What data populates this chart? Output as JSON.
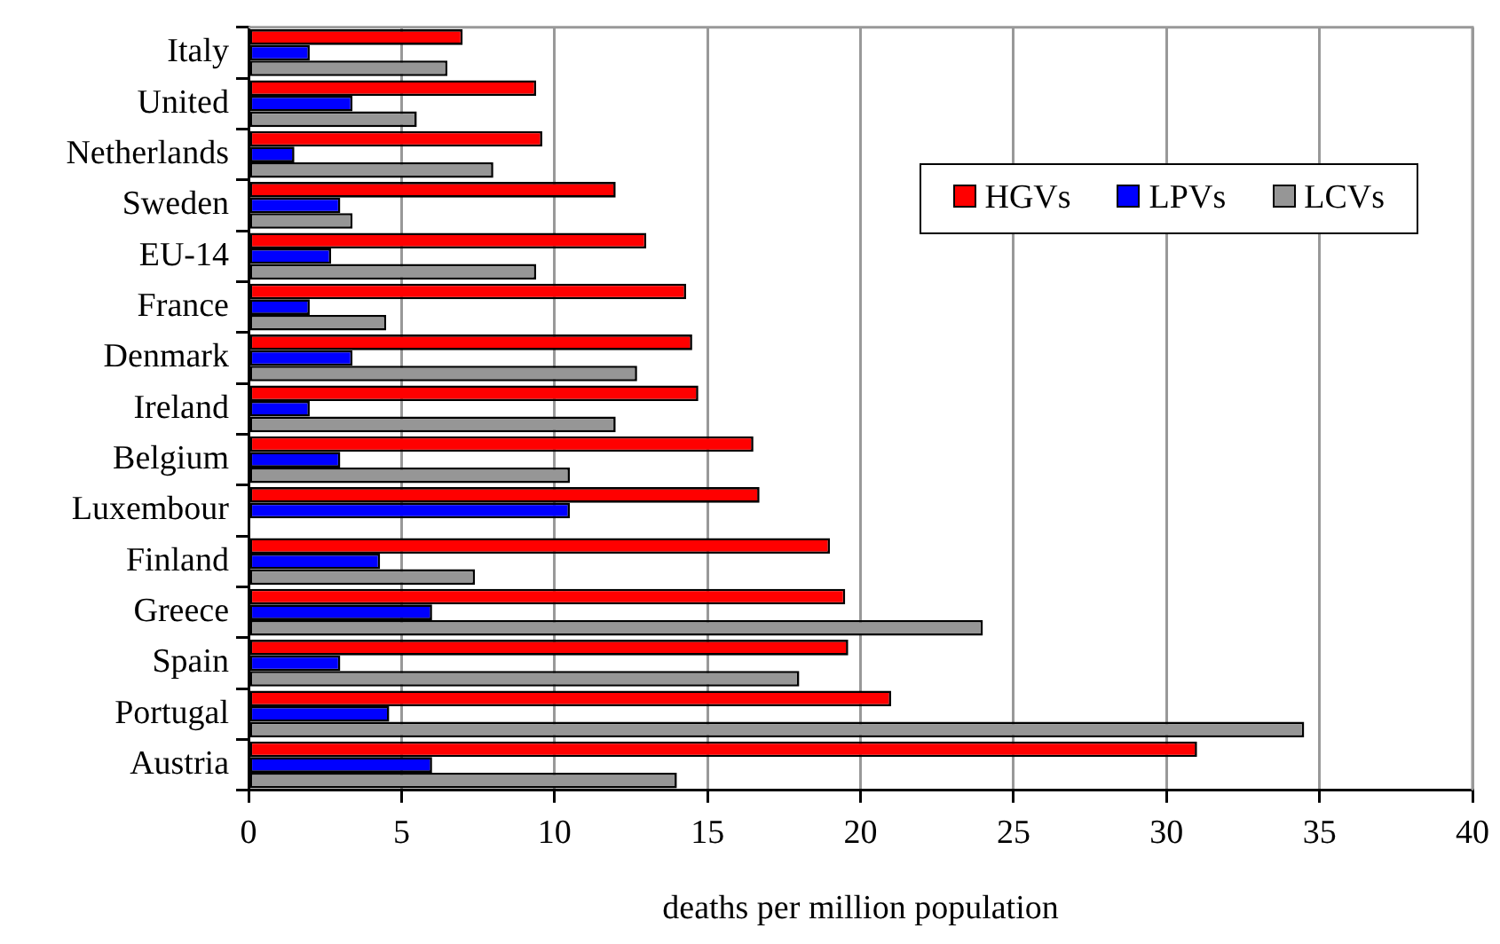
{
  "chart_data": {
    "type": "bar",
    "orientation": "horizontal",
    "xlabel": "deaths per million population",
    "categories": [
      "Italy",
      "United",
      "Netherlands",
      "Sweden",
      "EU-14",
      "France",
      "Denmark",
      "Ireland",
      "Belgium",
      "Luxembour",
      "Finland",
      "Greece",
      "Spain",
      "Portugal",
      "Austria"
    ],
    "series": [
      {
        "name": "HGVs",
        "color": "#ff0000",
        "values": [
          7.0,
          9.4,
          9.6,
          12.0,
          13.0,
          14.3,
          14.5,
          14.7,
          16.5,
          16.7,
          19.0,
          19.5,
          19.6,
          21.0,
          31.0
        ]
      },
      {
        "name": "LPVs",
        "color": "#0000ff",
        "values": [
          2.0,
          3.4,
          1.5,
          3.0,
          2.7,
          2.0,
          3.4,
          2.0,
          3.0,
          10.5,
          4.3,
          6.0,
          3.0,
          4.6,
          6.0
        ]
      },
      {
        "name": "LCVs",
        "color": "#969696",
        "values": [
          6.5,
          5.5,
          8.0,
          3.4,
          9.4,
          4.5,
          12.7,
          12.0,
          10.5,
          null,
          7.4,
          24.0,
          18.0,
          34.5,
          14.0
        ]
      }
    ],
    "xlim": [
      0,
      40
    ],
    "xticks": [
      0,
      5,
      10,
      15,
      20,
      25,
      30,
      35,
      40
    ],
    "grid": "x",
    "legend": "top right"
  }
}
